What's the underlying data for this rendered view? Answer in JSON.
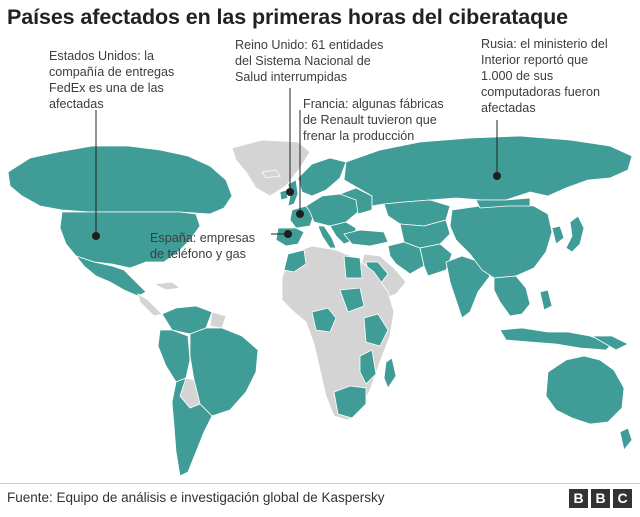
{
  "title": "Países afectados en las primeras horas del ciberataque",
  "colors": {
    "affected": "#3f9c97",
    "not_affected": "#d4d4d4",
    "border": "#ffffff",
    "leader_line": "#222222",
    "marker": "#1e1e1e"
  },
  "callouts": {
    "usa": {
      "lines": [
        "Estados Unidos: la",
        "compañía de entregas",
        "FedEx es una de las",
        "afectadas"
      ]
    },
    "uk": {
      "lines": [
        "Reino Unido: 61 entidades",
        "del Sistema Nacional de",
        "Salud interrumpidas"
      ]
    },
    "russia": {
      "lines": [
        "Rusia: el ministerio del",
        "Interior reportó que",
        "1.000 de sus",
        "computadoras fueron",
        "afectadas"
      ]
    },
    "france": {
      "lines": [
        "Francia: algunas fábricas",
        "de Renault tuvieron que",
        "frenar la producción"
      ]
    },
    "spain": {
      "lines": [
        "España: empresas",
        "de teléfono y gas"
      ]
    }
  },
  "footer": {
    "source": "Fuente: Equipo de análisis e investigación global de Kaspersky",
    "logo_letters": [
      "B",
      "B",
      "C"
    ]
  }
}
